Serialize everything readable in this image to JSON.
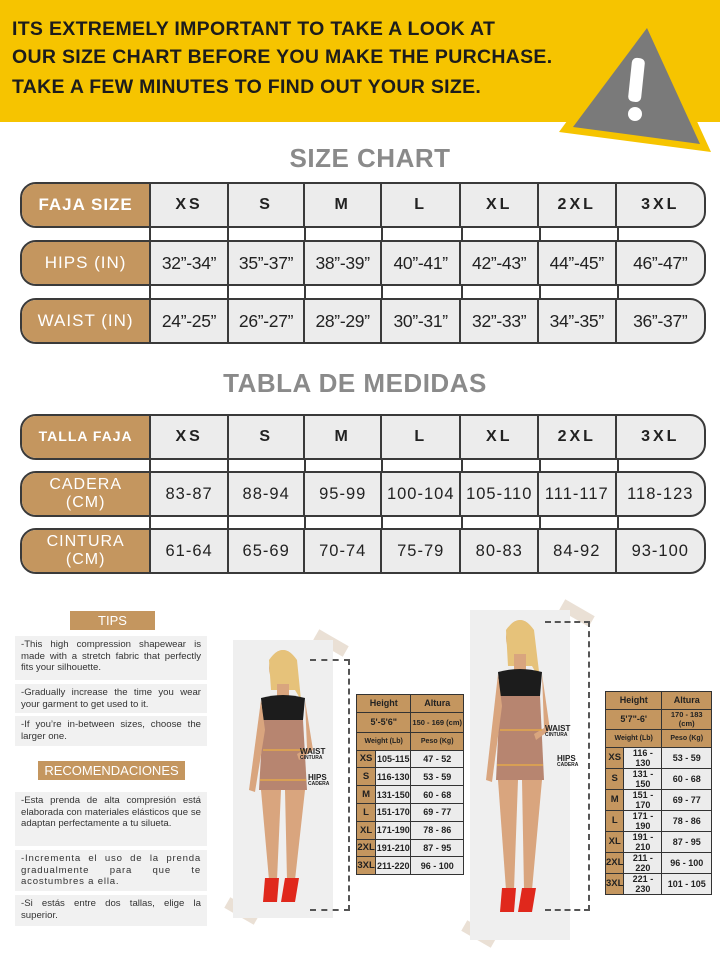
{
  "banner": {
    "lines": [
      "ITS EXTREMELY IMPORTANT TO TAKE A LOOK AT",
      "OUR SIZE CHART BEFORE YOU MAKE THE PURCHASE.",
      "TAKE A FEW MINUTES TO FIND OUT YOUR SIZE."
    ],
    "icon": "warning-triangle-icon",
    "colors": {
      "banner": "#f6c400",
      "accent": "#c4965f"
    }
  },
  "size_chart": {
    "title": "SIZE CHART",
    "rows": [
      {
        "label": "FAJA SIZE",
        "cells": [
          "XS",
          "S",
          "M",
          "L",
          "XL",
          "2XL",
          "3XL"
        ]
      },
      {
        "label": "HIPS (IN)",
        "cells": [
          "32”-34”",
          "35”-37”",
          "38”-39”",
          "40”-41”",
          "42”-43”",
          "44”-45”",
          "46”-47”"
        ]
      },
      {
        "label": "WAIST (IN)",
        "cells": [
          "24”-25”",
          "26”-27”",
          "28”-29”",
          "30”-31”",
          "32”-33”",
          "34”-35”",
          "36”-37”"
        ]
      }
    ]
  },
  "tabla": {
    "title": "TABLA DE MEDIDAS",
    "rows": [
      {
        "label": "TALLA FAJA",
        "cells": [
          "XS",
          "S",
          "M",
          "L",
          "XL",
          "2XL",
          "3XL"
        ]
      },
      {
        "label": "CADERA (CM)",
        "cells": [
          "83-87",
          "88-94",
          "95-99",
          "100-104",
          "105-110",
          "111-117",
          "118-123"
        ]
      },
      {
        "label": "CINTURA (CM)",
        "cells": [
          "61-64",
          "65-69",
          "70-74",
          "75-79",
          "80-83",
          "84-92",
          "93-100"
        ]
      }
    ]
  },
  "tips": {
    "title": "TIPS",
    "items": [
      "-This high compression shapewear is made with a stretch fabric that perfectly fits your silhouette.",
      "-Gradually increase the time you wear your garment to get used to it.",
      "-If you’re in-between sizes, choose the larger one."
    ]
  },
  "recomendaciones": {
    "title": "RECOMENDACIONES",
    "items": [
      "-Esta prenda de alta compresión está elaborada con materiales elásticos que se adaptan perfectamente a tu silueta.",
      "-Incrementa el uso de la prenda gradualmente para que te acostumbres a ella.",
      "-Si estás entre dos tallas, elige la superior."
    ]
  },
  "measure_labels": {
    "waist": "WAIST",
    "waist_es": "CINTURA",
    "hips": "HIPS",
    "hips_es": "CADERA"
  },
  "small_tables": [
    {
      "height_h": "Height",
      "altura_h": "Altura",
      "height": "5'-5'6\"",
      "altura": "150 - 169 (cm)",
      "weight_h": "Weight (Lb)",
      "peso_h": "Peso (Kg)",
      "rows": [
        [
          "XS",
          "105-115",
          "47 - 52"
        ],
        [
          "S",
          "116-130",
          "53 - 59"
        ],
        [
          "M",
          "131-150",
          "60 - 68"
        ],
        [
          "L",
          "151-170",
          "69 - 77"
        ],
        [
          "XL",
          "171-190",
          "78 - 86"
        ],
        [
          "2XL",
          "191-210",
          "87 - 95"
        ],
        [
          "3XL",
          "211-220",
          "96 - 100"
        ]
      ]
    },
    {
      "height_h": "Height",
      "altura_h": "Altura",
      "height": "5'7\"-6'",
      "altura": "170 - 183 (cm)",
      "weight_h": "Weight (Lb)",
      "peso_h": "Peso (Kg)",
      "rows": [
        [
          "XS",
          "116 - 130",
          "53 - 59"
        ],
        [
          "S",
          "131 - 150",
          "60 - 68"
        ],
        [
          "M",
          "151 - 170",
          "69 - 77"
        ],
        [
          "L",
          "171 - 190",
          "78 - 86"
        ],
        [
          "XL",
          "191 - 210",
          "87 - 95"
        ],
        [
          "2XL",
          "211 - 220",
          "96 - 100"
        ],
        [
          "3XL",
          "221 - 230",
          "101 - 105"
        ]
      ]
    }
  ]
}
